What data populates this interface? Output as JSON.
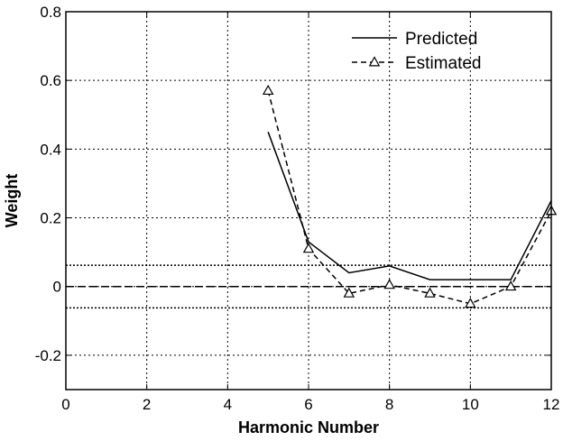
{
  "chart_data": {
    "type": "line",
    "xlabel": "Harmonic Number",
    "ylabel": "Weight",
    "xlim": [
      0,
      12
    ],
    "ylim": [
      -0.3,
      0.8
    ],
    "x_ticks": [
      0,
      2,
      4,
      6,
      8,
      10,
      12
    ],
    "y_ticks": [
      -0.2,
      0,
      0.2,
      0.4,
      0.6,
      0.8
    ],
    "x_tick_labels": [
      "0",
      "2",
      "4",
      "6",
      "8",
      "10",
      "12"
    ],
    "y_tick_labels": [
      "-0.2",
      "0",
      "0.2",
      "0.4",
      "0.6",
      "0.8"
    ],
    "grid": true,
    "legend_position": "top-right",
    "series": [
      {
        "name": "Predicted",
        "style": "solid",
        "marker": "none",
        "color": "#000000",
        "x": [
          5,
          6,
          7,
          8,
          9,
          10,
          11,
          12
        ],
        "y": [
          0.45,
          0.13,
          0.04,
          0.06,
          0.02,
          0.02,
          0.02,
          0.25
        ]
      },
      {
        "name": "Estimated",
        "style": "dashed",
        "marker": "triangle",
        "color": "#000000",
        "x": [
          5,
          6,
          7,
          8,
          9,
          10,
          11,
          12
        ],
        "y": [
          0.57,
          0.11,
          -0.02,
          0.005,
          -0.02,
          -0.05,
          0.0,
          0.22
        ]
      }
    ],
    "reference_lines": [
      {
        "y": 0,
        "style": "dashed"
      },
      {
        "y": 0.062,
        "style": "dotted"
      },
      {
        "y": -0.062,
        "style": "dotted"
      }
    ]
  }
}
